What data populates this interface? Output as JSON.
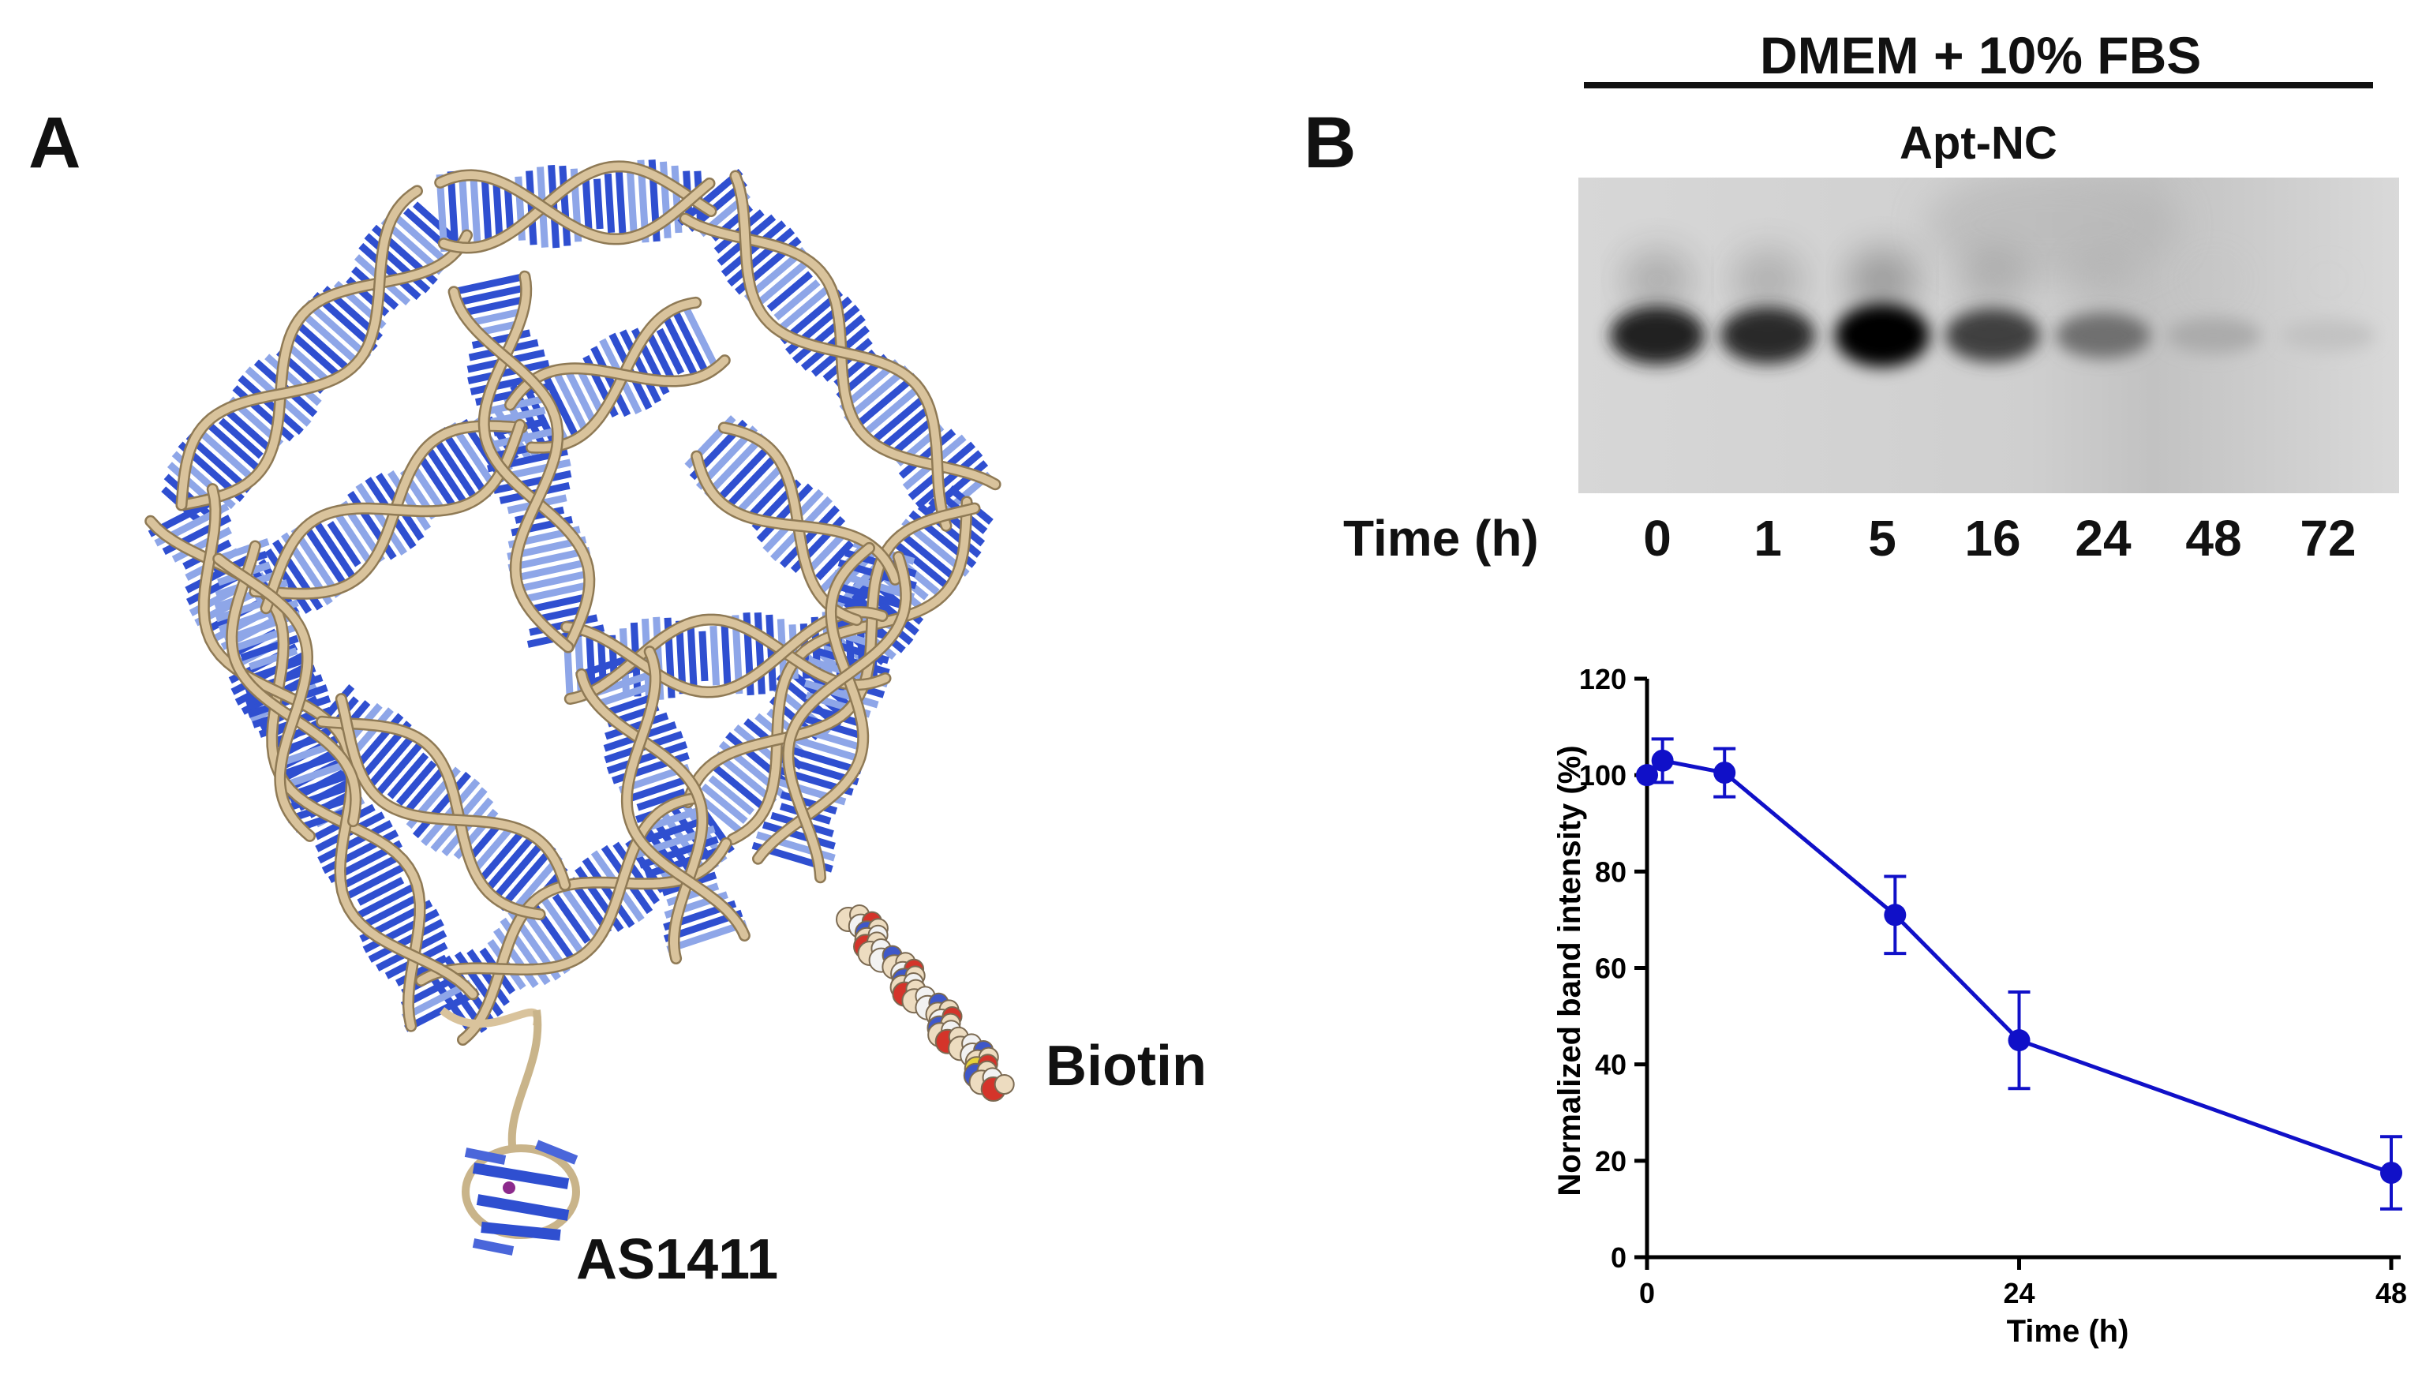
{
  "panel_a": {
    "label": "A",
    "annotations": {
      "biotin": "Biotin",
      "as1411": "AS1411"
    },
    "colors": {
      "backbone": "#d9c39c",
      "bases_dark": "#2f4fd0",
      "bases_light": "#8ea6e8"
    }
  },
  "panel_b": {
    "label": "B",
    "condition": "DMEM + 10% FBS",
    "sample": "Apt-NC",
    "time_axis_label": "Time (h)",
    "lanes": [
      "0",
      "1",
      "5",
      "16",
      "24",
      "48",
      "72"
    ],
    "band_intensity_relative": [
      0.85,
      0.8,
      1.0,
      0.7,
      0.45,
      0.15,
      0.03
    ]
  },
  "chart_data": {
    "type": "line",
    "xlabel": "Time (h)",
    "ylabel": "Normalized band intensity (%)",
    "xlim": [
      0,
      48
    ],
    "ylim": [
      0,
      120
    ],
    "xticks": [
      "0",
      "24",
      "48"
    ],
    "yticks": [
      "0",
      "20",
      "40",
      "60",
      "80",
      "100",
      "120"
    ],
    "color": "#1010c8",
    "series": [
      {
        "x": [
          0,
          1,
          5,
          16,
          24,
          48
        ],
        "y": [
          100,
          103,
          100.5,
          71,
          45,
          17.5
        ],
        "yerr": [
          0,
          4.5,
          5,
          8,
          10,
          7.5
        ]
      }
    ]
  }
}
